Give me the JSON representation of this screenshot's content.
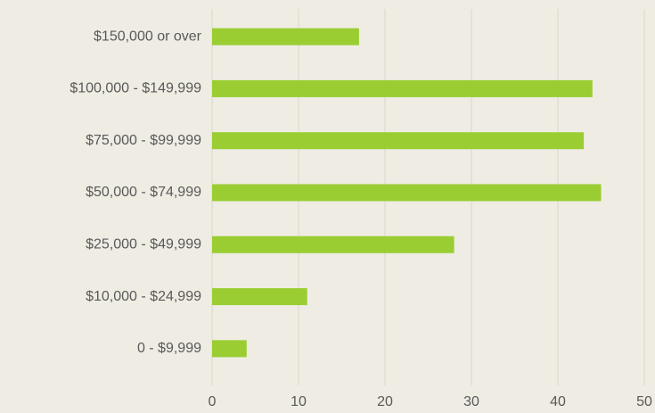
{
  "chart_data": {
    "type": "bar",
    "orientation": "horizontal",
    "categories": [
      "$150,000 or over",
      "$100,000 - $149,999",
      "$75,000 - $99,999",
      "$50,000 - $74,999",
      "$25,000 - $49,999",
      "$10,000 - $24,999",
      "0 - $9,999"
    ],
    "values": [
      17,
      44,
      43,
      45,
      28,
      11,
      4
    ],
    "color": "#9acd32",
    "xlim": [
      0,
      50
    ],
    "xticks": [
      0,
      10,
      20,
      30,
      40,
      50
    ],
    "grid": true
  }
}
